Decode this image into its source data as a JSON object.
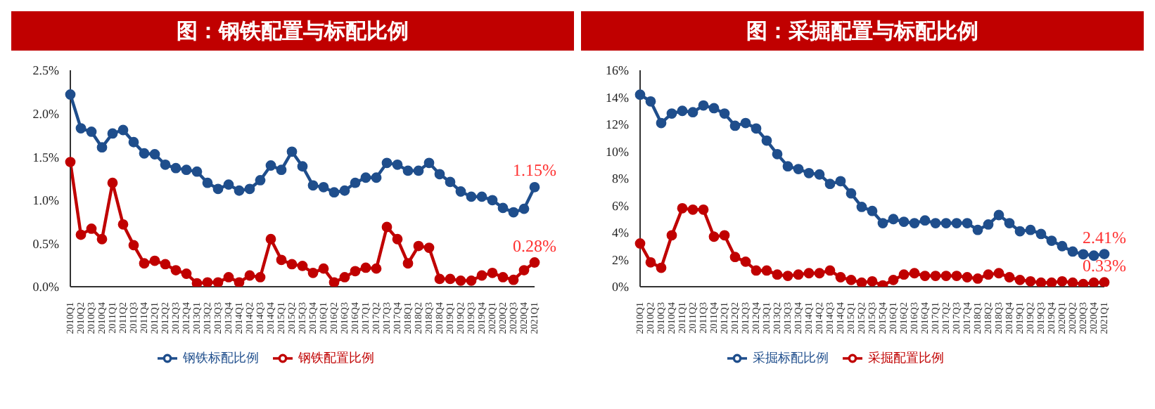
{
  "chart_data": [
    {
      "type": "line",
      "title": "图：钢铁配置与标配比例",
      "categories": [
        "2010Q1",
        "2010Q2",
        "2010Q3",
        "2010Q4",
        "2011Q1",
        "2011Q2",
        "2011Q3",
        "2011Q4",
        "2012Q1",
        "2012Q2",
        "2012Q3",
        "2012Q4",
        "2013Q1",
        "2013Q2",
        "2013Q3",
        "2013Q4",
        "2014Q1",
        "2014Q2",
        "2014Q3",
        "2014Q4",
        "2015Q1",
        "2015Q2",
        "2015Q3",
        "2015Q4",
        "2016Q1",
        "2016Q2",
        "2016Q3",
        "2016Q4",
        "2017Q1",
        "2017Q2",
        "2017Q3",
        "2017Q4",
        "2018Q1",
        "2018Q2",
        "2018Q3",
        "2018Q4",
        "2019Q1",
        "2019Q2",
        "2019Q3",
        "2019Q4",
        "2020Q1",
        "2020Q2",
        "2020Q3",
        "2020Q4",
        "2021Q1"
      ],
      "series": [
        {
          "name": "钢铁配置比例",
          "color": "#c00000",
          "values": [
            1.44,
            0.6,
            0.67,
            0.55,
            1.2,
            0.72,
            0.48,
            0.27,
            0.3,
            0.26,
            0.19,
            0.15,
            0.04,
            0.05,
            0.05,
            0.11,
            0.05,
            0.13,
            0.11,
            0.55,
            0.31,
            0.26,
            0.24,
            0.16,
            0.21,
            0.05,
            0.11,
            0.18,
            0.22,
            0.21,
            0.69,
            0.55,
            0.27,
            0.47,
            0.45,
            0.09,
            0.09,
            0.07,
            0.07,
            0.13,
            0.16,
            0.11,
            0.08,
            0.19,
            0.28
          ]
        },
        {
          "name": "钢铁标配比例",
          "color": "#1f4e8c",
          "values": [
            2.22,
            1.83,
            1.79,
            1.61,
            1.77,
            1.81,
            1.67,
            1.54,
            1.53,
            1.41,
            1.37,
            1.35,
            1.33,
            1.2,
            1.13,
            1.18,
            1.11,
            1.13,
            1.23,
            1.4,
            1.35,
            1.56,
            1.39,
            1.17,
            1.15,
            1.09,
            1.11,
            1.2,
            1.26,
            1.26,
            1.43,
            1.41,
            1.34,
            1.34,
            1.43,
            1.3,
            1.21,
            1.1,
            1.04,
            1.04,
            1.0,
            0.91,
            0.86,
            0.9,
            1.15
          ]
        }
      ],
      "ylim": [
        0,
        2.5
      ],
      "yticks": [
        {
          "value": 0,
          "label": "0.0%"
        },
        {
          "value": 0.5,
          "label": "0.5%"
        },
        {
          "value": 1,
          "label": "1.0%"
        },
        {
          "value": 1.5,
          "label": "1.5%"
        },
        {
          "value": 2,
          "label": "2.0%"
        },
        {
          "value": 2.5,
          "label": "2.5%"
        }
      ],
      "annotations": [
        {
          "text": "1.15%",
          "x": "2021Q1",
          "y": 1.15
        },
        {
          "text": "0.28%",
          "x": "2021Q1",
          "y": 0.28
        }
      ],
      "marker": "circle",
      "legend": "bottom",
      "grid": false
    },
    {
      "type": "line",
      "title": "图：采掘配置与标配比例",
      "categories": [
        "2010Q1",
        "2010Q2",
        "2010Q3",
        "2010Q4",
        "2011Q1",
        "2011Q2",
        "2011Q3",
        "2011Q4",
        "2012Q1",
        "2012Q2",
        "2012Q3",
        "2012Q4",
        "2013Q1",
        "2013Q2",
        "2013Q3",
        "2013Q4",
        "2014Q1",
        "2014Q2",
        "2014Q3",
        "2014Q4",
        "2015Q1",
        "2015Q2",
        "2015Q3",
        "2015Q4",
        "2016Q1",
        "2016Q2",
        "2016Q3",
        "2016Q4",
        "2017Q1",
        "2017Q2",
        "2017Q3",
        "2017Q4",
        "2018Q1",
        "2018Q2",
        "2018Q3",
        "2018Q4",
        "2019Q1",
        "2019Q2",
        "2019Q3",
        "2019Q4",
        "2020Q1",
        "2020Q2",
        "2020Q3",
        "2020Q4",
        "2021Q1"
      ],
      "series": [
        {
          "name": "采掘配置比例",
          "color": "#c00000",
          "values": [
            3.2,
            1.8,
            1.4,
            3.8,
            5.8,
            5.7,
            5.7,
            3.7,
            3.8,
            2.2,
            1.85,
            1.2,
            1.2,
            0.9,
            0.8,
            0.9,
            1.0,
            1.0,
            1.2,
            0.7,
            0.5,
            0.3,
            0.4,
            0.1,
            0.5,
            0.9,
            1.0,
            0.8,
            0.8,
            0.8,
            0.8,
            0.7,
            0.6,
            0.9,
            1.0,
            0.7,
            0.5,
            0.4,
            0.3,
            0.3,
            0.4,
            0.3,
            0.2,
            0.3,
            0.33
          ]
        },
        {
          "name": "采掘标配比例",
          "color": "#1f4e8c",
          "values": [
            14.2,
            13.7,
            12.1,
            12.8,
            13.0,
            12.9,
            13.4,
            13.2,
            12.8,
            11.9,
            12.1,
            11.7,
            10.8,
            9.8,
            8.9,
            8.7,
            8.4,
            8.3,
            7.6,
            7.8,
            6.9,
            5.9,
            5.6,
            4.7,
            5.0,
            4.8,
            4.7,
            4.9,
            4.7,
            4.7,
            4.7,
            4.7,
            4.2,
            4.6,
            5.3,
            4.7,
            4.1,
            4.2,
            3.9,
            3.4,
            3.0,
            2.6,
            2.4,
            2.3,
            2.41
          ]
        }
      ],
      "ylim": [
        0,
        16
      ],
      "yticks": [
        {
          "value": 0,
          "label": "0%"
        },
        {
          "value": 2,
          "label": "2%"
        },
        {
          "value": 4,
          "label": "4%"
        },
        {
          "value": 6,
          "label": "6%"
        },
        {
          "value": 8,
          "label": "8%"
        },
        {
          "value": 10,
          "label": "10%"
        },
        {
          "value": 12,
          "label": "12%"
        },
        {
          "value": 14,
          "label": "14%"
        },
        {
          "value": 16,
          "label": "16%"
        }
      ],
      "annotations": [
        {
          "text": "2.41%",
          "x": "2021Q1",
          "y": 2.41
        },
        {
          "text": "0.33%",
          "x": "2021Q1",
          "y": 0.33
        }
      ],
      "marker": "circle",
      "legend": "bottom",
      "grid": false
    }
  ]
}
